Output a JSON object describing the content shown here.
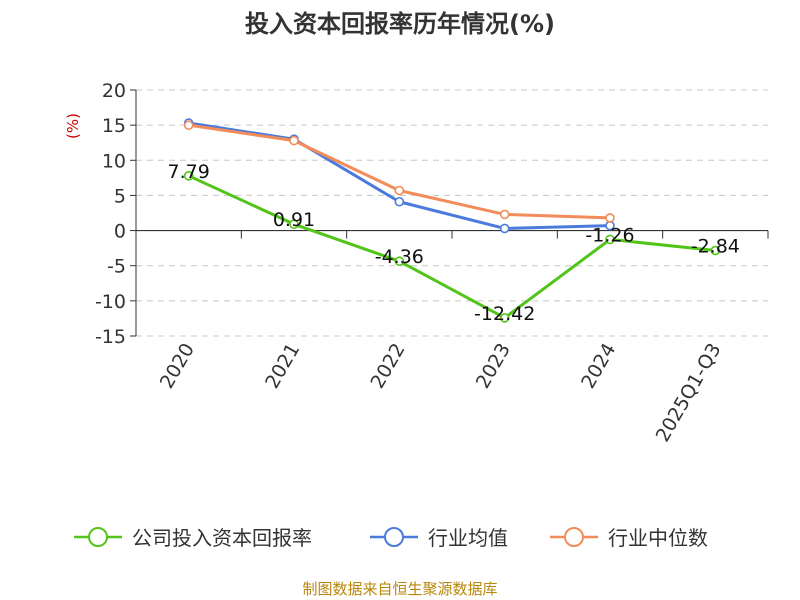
{
  "chart_data": {
    "type": "line",
    "title": "投入资本回报率历年情况(%)",
    "ylabel": "(%)",
    "categories": [
      "2020",
      "2021",
      "2022",
      "2023",
      "2024",
      "2025Q1-Q3"
    ],
    "ylim": [
      -15,
      20
    ],
    "yticks": [
      20,
      15,
      10,
      5,
      0,
      -5,
      -10,
      -15
    ],
    "grid": true,
    "legend_position": "bottom",
    "series": [
      {
        "name": "公司投入资本回报率",
        "color": "#52c41a",
        "values": [
          7.79,
          0.91,
          -4.36,
          -12.42,
          -1.26,
          -2.84
        ],
        "labels": [
          "7.79",
          "0.91",
          "-4.36",
          "-12.42",
          "-1.26",
          "-2.84"
        ]
      },
      {
        "name": "行业均值",
        "color": "#4a7bdc",
        "values": [
          15.3,
          13.0,
          4.1,
          0.3,
          0.7,
          null
        ]
      },
      {
        "name": "行业中位数",
        "color": "#f28c5a",
        "values": [
          15.0,
          12.8,
          5.7,
          2.3,
          1.8,
          null
        ]
      }
    ]
  },
  "source": "制图数据来自恒生聚源数据库"
}
